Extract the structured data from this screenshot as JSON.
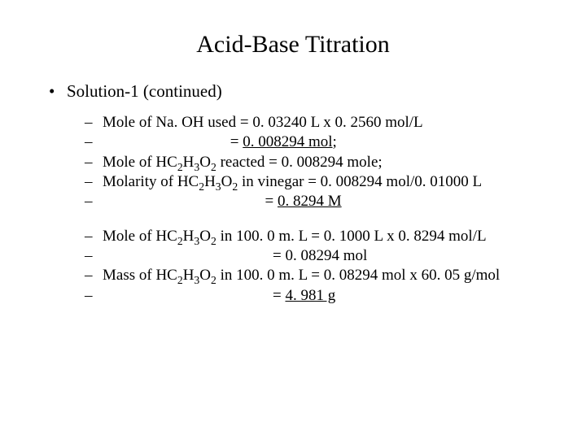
{
  "colors": {
    "background": "#ffffff",
    "text": "#000000"
  },
  "typography": {
    "family": "Times New Roman",
    "title_size_pt": 30,
    "body_size_pt": 21,
    "sub_size_pt": 19
  },
  "title": "Acid-Base Titration",
  "heading": "Solution-1 (continued)",
  "bullets": {
    "lvl1": "•",
    "lvl2": "–"
  },
  "group1": {
    "l1a": "Mole of Na. OH used = 0. 03240 L x 0. 2560 mol/L",
    "l1b": "                                 = ",
    "l1b_u": "0. 008294 mol",
    "l1b_tail": ";",
    "l2_pre": "Mole of HC",
    "l2_mid": " reacted = 0. 008294 mole;",
    "l3_pre": "Molarity of HC",
    "l3_mid": " in vinegar = 0. 008294 mol/0. 01000 L",
    "l4_pre": "                                          = ",
    "l4_u": "0. 8294 M"
  },
  "group2": {
    "l1_pre": "Mole of HC",
    "l1_mid": " in 100. 0 m. L  = 0. 1000 L x 0. 8294 mol/L",
    "l2": "                                            = 0. 08294 mol",
    "l3_pre": "Mass of HC",
    "l3_mid": " in 100. 0 m. L  = 0. 08294 mol x 60. 05 g/mol",
    "l4_pre": "                                            = ",
    "l4_u": "4. 981 g"
  },
  "subs": {
    "a": "2",
    "b": "3",
    "c": "2"
  },
  "chem_parts": {
    "h": "H",
    "o": "O"
  }
}
